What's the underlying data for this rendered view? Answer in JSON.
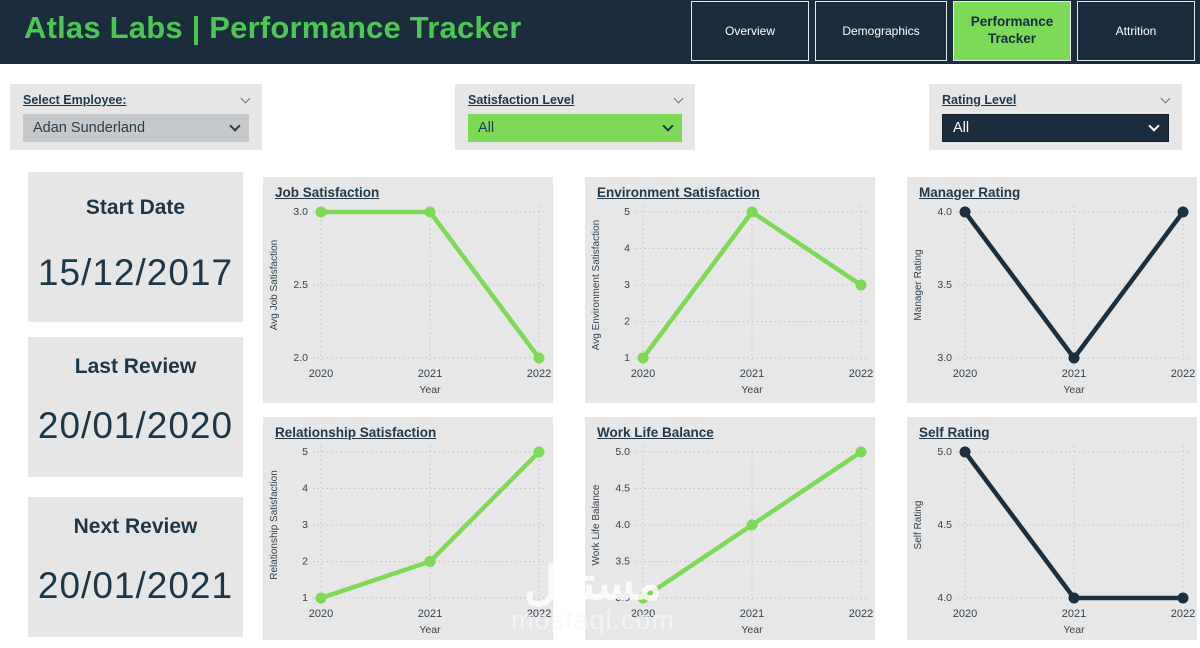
{
  "header": {
    "title": "Atlas Labs | Performance Tracker",
    "tabs": [
      {
        "label": "Overview",
        "active": false
      },
      {
        "label": "Demographics",
        "active": false
      },
      {
        "label": "Performance Tracker",
        "active": true
      },
      {
        "label": "Attrition",
        "active": false
      }
    ]
  },
  "filters": {
    "employee": {
      "label": "Select Employee:",
      "value": "Adan Sunderland"
    },
    "satisfaction": {
      "label": "Satisfaction Level",
      "value": "All"
    },
    "rating": {
      "label": "Rating Level",
      "value": "All"
    }
  },
  "info_cards": [
    {
      "label": "Start Date",
      "value": "15/12/2017"
    },
    {
      "label": "Last Review",
      "value": "20/01/2020"
    },
    {
      "label": "Next Review",
      "value": "20/01/2021"
    }
  ],
  "colors": {
    "header_navy": "#1b2c3d",
    "accent_green": "#7ed957",
    "line_navy": "#1c2f3e",
    "panel_gray": "#e7e7e7"
  },
  "watermark": {
    "line1": "مستقل",
    "line2": "mostaql.com"
  },
  "chart_data": [
    {
      "type": "line",
      "title": "Job Satisfaction",
      "ylabel": "Avg Job Satisfaction",
      "xlabel": "Year",
      "x": [
        2020,
        2021,
        2022
      ],
      "values": [
        3.0,
        3.0,
        2.0
      ],
      "yticks": [
        "3.0",
        "2.5",
        "2.0"
      ],
      "ylim": [
        2.0,
        3.0
      ],
      "color": "#7ed957",
      "grid": true
    },
    {
      "type": "line",
      "title": "Environment Satisfaction",
      "ylabel": "Avg Environment Satisfaction",
      "xlabel": "Year",
      "x": [
        2020,
        2021,
        2022
      ],
      "values": [
        1,
        5,
        3
      ],
      "yticks": [
        "5",
        "4",
        "3",
        "2",
        "1"
      ],
      "ylim": [
        1,
        5
      ],
      "color": "#7ed957",
      "grid": true
    },
    {
      "type": "line",
      "title": "Manager Rating",
      "ylabel": "Manager Rating",
      "xlabel": "Year",
      "x": [
        2020,
        2021,
        2022
      ],
      "values": [
        4.0,
        3.0,
        4.0
      ],
      "yticks": [
        "4.0",
        "3.5",
        "3.0"
      ],
      "ylim": [
        3.0,
        4.0
      ],
      "color": "#1c2f3e",
      "grid": true
    },
    {
      "type": "line",
      "title": "Relationship Satisfaction",
      "ylabel": "Relationship Satisfaction",
      "xlabel": "Year",
      "x": [
        2020,
        2021,
        2022
      ],
      "values": [
        1,
        2,
        5
      ],
      "yticks": [
        "5",
        "4",
        "3",
        "2",
        "1"
      ],
      "ylim": [
        1,
        5
      ],
      "color": "#7ed957",
      "grid": true
    },
    {
      "type": "line",
      "title": "Work Life Balance",
      "ylabel": "Work Life Balance",
      "xlabel": "Year",
      "x": [
        2020,
        2021,
        2022
      ],
      "values": [
        3.0,
        4.0,
        5.0
      ],
      "yticks": [
        "5.0",
        "4.5",
        "4.0",
        "3.5",
        "3.0"
      ],
      "ylim": [
        3.0,
        5.0
      ],
      "color": "#7ed957",
      "grid": true
    },
    {
      "type": "line",
      "title": "Self Rating",
      "ylabel": "Self Rating",
      "xlabel": "Year",
      "x": [
        2020,
        2021,
        2022
      ],
      "values": [
        5.0,
        4.0,
        4.0
      ],
      "yticks": [
        "5.0",
        "4.5",
        "4.0"
      ],
      "ylim": [
        4.0,
        5.0
      ],
      "color": "#1c2f3e",
      "grid": true
    }
  ]
}
